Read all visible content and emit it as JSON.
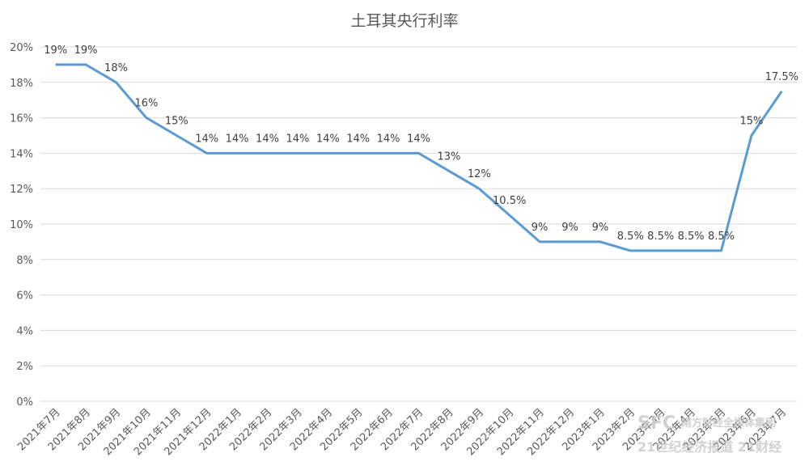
{
  "chart_data": {
    "type": "line",
    "title": "土耳其央行利率",
    "categories": [
      "2021年7月",
      "2021年8月",
      "2021年9月",
      "2021年10月",
      "2021年11月",
      "2021年12月",
      "2022年1月",
      "2022年2月",
      "2022年3月",
      "2022年4月",
      "2022年5月",
      "2022年6月",
      "2022年7月",
      "2022年8月",
      "2022年9月",
      "2022年10月",
      "2022年11月",
      "2022年12月",
      "2023年1月",
      "2023年2月",
      "2023年3月",
      "2023年4月",
      "2023年5月",
      "2023年6月",
      "2023年7月"
    ],
    "values": [
      19,
      19,
      18,
      16,
      15,
      14,
      14,
      14,
      14,
      14,
      14,
      14,
      14,
      13,
      12,
      10.5,
      9,
      9,
      9,
      8.5,
      8.5,
      8.5,
      8.5,
      15,
      17.5
    ],
    "data_labels": [
      "19%",
      "19%",
      "18%",
      "16%",
      "15%",
      "14%",
      "14%",
      "14%",
      "14%",
      "14%",
      "14%",
      "14%",
      "14%",
      "13%",
      "12%",
      "10.5%",
      "9%",
      "9%",
      "9%",
      "8.5%",
      "8.5%",
      "8.5%",
      "8.5%",
      "15%",
      "17.5%"
    ],
    "ylim": [
      0,
      20
    ],
    "yticks": [
      "0%",
      "2%",
      "4%",
      "6%",
      "8%",
      "10%",
      "12%",
      "14%",
      "16%",
      "18%",
      "20%"
    ],
    "grid": true,
    "series_color": "#5b9bd5"
  },
  "watermark": {
    "logo": "SFC",
    "line1": "南方财经全媒体集团",
    "line2": "21世纪经济报道 21财经"
  }
}
